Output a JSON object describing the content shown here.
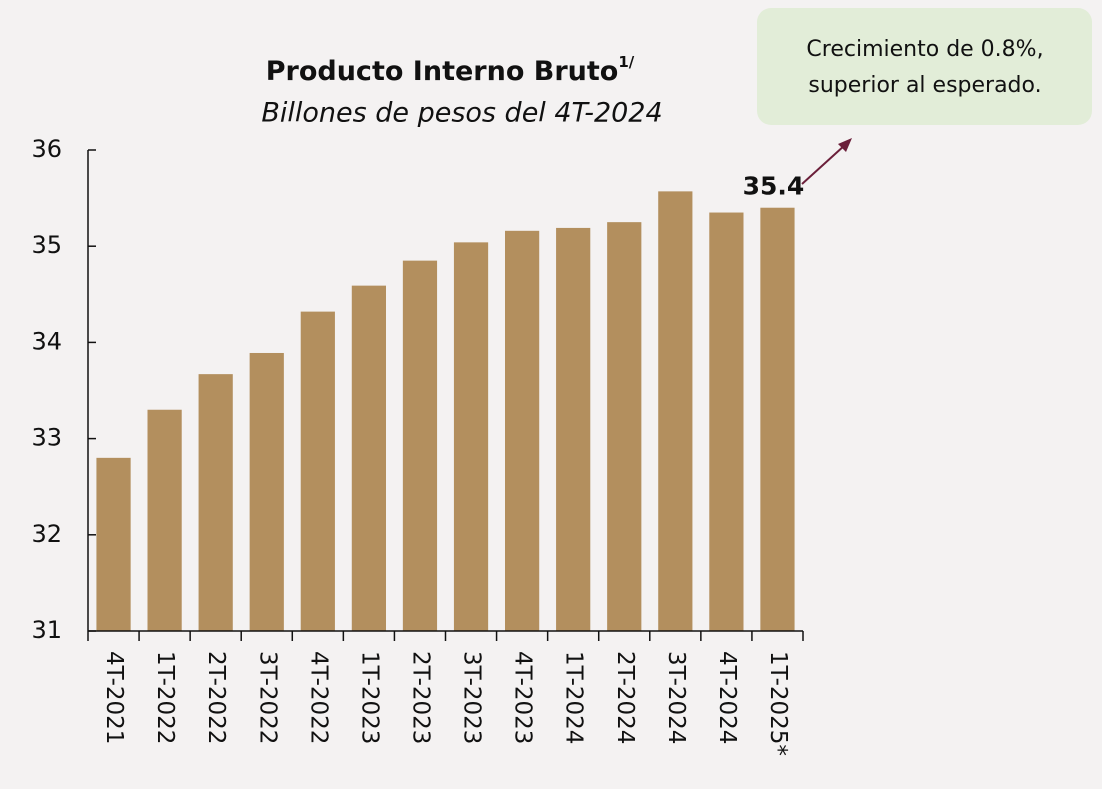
{
  "chart_data": {
    "type": "bar",
    "title": "Producto Interno Bruto",
    "title_note": "1/",
    "subtitle": "Billones de pesos del 4T-2024",
    "annotation": [
      "Crecimiento de 0.8%,",
      "superior al esperado."
    ],
    "categories": [
      "4T-2021",
      "1T-2022",
      "2T-2022",
      "3T-2022",
      "4T-2022",
      "1T-2023",
      "2T-2023",
      "3T-2023",
      "4T-2023",
      "1T-2024",
      "2T-2024",
      "3T-2024",
      "4T-2024",
      "1T-2025*"
    ],
    "values": [
      32.8,
      33.3,
      33.67,
      33.89,
      34.32,
      34.59,
      34.85,
      35.04,
      35.16,
      35.19,
      35.25,
      35.57,
      35.35,
      35.4
    ],
    "labeled_index": 13,
    "color": "#b38f5e",
    "label_color": "#6b1f3a",
    "ylim": [
      31,
      36
    ],
    "yticks": [
      31,
      32,
      33,
      34,
      35,
      36
    ],
    "grid": false
  }
}
